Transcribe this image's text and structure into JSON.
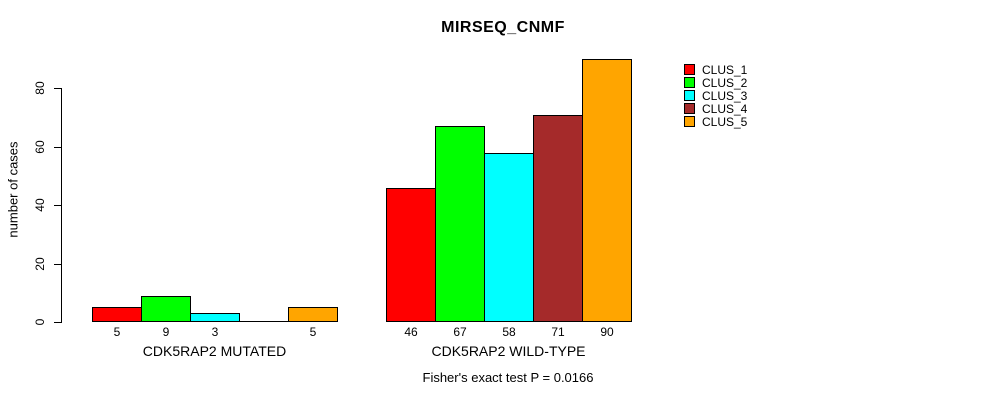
{
  "chart_data": {
    "type": "bar",
    "title": "MIRSEQ_CNMF",
    "ylabel": "number of cases",
    "xlabel": "",
    "annotation": "Fisher's exact test P = 0.0166",
    "categories": [
      "CDK5RAP2 MUTATED",
      "CDK5RAP2 WILD-TYPE"
    ],
    "series": [
      {
        "name": "CLUS_1",
        "color": "#FF0000",
        "values": [
          5,
          46
        ]
      },
      {
        "name": "CLUS_2",
        "color": "#00FF00",
        "values": [
          9,
          67
        ]
      },
      {
        "name": "CLUS_3",
        "color": "#00FFFF",
        "values": [
          3,
          58
        ]
      },
      {
        "name": "CLUS_4",
        "color": "#A52A2A",
        "values": [
          0,
          71
        ]
      },
      {
        "name": "CLUS_5",
        "color": "#FFA500",
        "values": [
          5,
          90
        ]
      }
    ],
    "yticks": [
      0,
      20,
      40,
      60,
      80
    ],
    "ylim": [
      0,
      90
    ],
    "grid": false,
    "legend_position": "right"
  }
}
